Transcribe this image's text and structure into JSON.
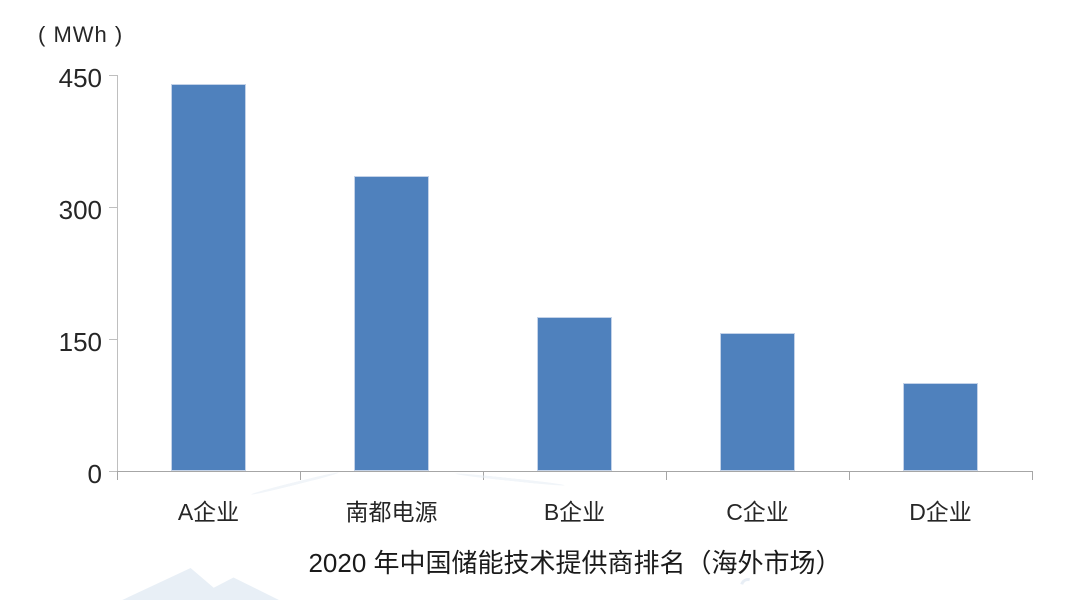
{
  "page": {
    "background": "#ffffff"
  },
  "chart_data": {
    "type": "bar",
    "title": "2020 年中国储能技术提供商排名（海外市场）",
    "unit_label": "( MWh )",
    "categories": [
      "A企业",
      "南都电源",
      "B企业",
      "C企业",
      "D企业"
    ],
    "values": [
      440,
      335,
      175,
      157,
      100
    ],
    "yticks": [
      0,
      150,
      300,
      450
    ],
    "ylim": [
      0,
      450
    ],
    "grid": "off",
    "legend": "none",
    "colors": {
      "bar_fill": "#4f81bd",
      "bar_edge": "#c3d2e8",
      "axis_line": "#bfbfbf",
      "baseline": "#a6a6a6",
      "text": "#262626",
      "watermark": "#e6edf5"
    }
  }
}
